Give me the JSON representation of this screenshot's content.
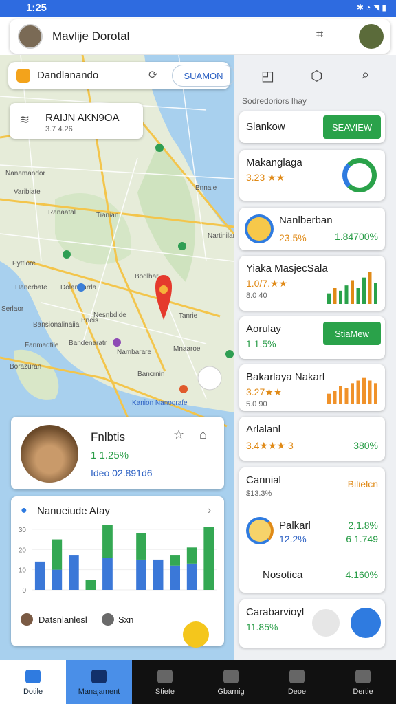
{
  "status_bar": {
    "time": "1:25"
  },
  "header": {
    "title": "Mavlije Dorotal"
  },
  "search": {
    "text": "Dandlanando",
    "button": "SUAMON"
  },
  "info_card": {
    "title": "RAIJN AKN9OA",
    "subtitle": "3.7 4.26"
  },
  "map": {
    "labels": [
      "Nanamandor",
      "Bnnaie",
      "Ranaatal",
      "Varibiate",
      "Tianian",
      "Nartinilant",
      "Bodlhar",
      "Pyttiore",
      "Hanerbate",
      "Dolamrarrla",
      "Serlaor",
      "Bneis",
      "Fanmadtile",
      "Tanrie",
      "Nesnbdide",
      "Mnaaroe",
      "Borazuran",
      "Bandenaratr",
      "Nambarare",
      "Bansionalinaiia",
      "Bancrnin",
      "Kanion Nanografe"
    ]
  },
  "profile_card": {
    "name": "Fnlbtis",
    "percent": "1 1.25%",
    "detail": "Ideo 02.891d6"
  },
  "activity_chart": {
    "type": "bar",
    "title": "Nanueiude Atay",
    "series": [
      {
        "color": "#3b78d8",
        "values": [
          14,
          10,
          17,
          0,
          16,
          0,
          15,
          15,
          12,
          13,
          0
        ]
      },
      {
        "color": "#34a853",
        "values": [
          0,
          15,
          0,
          5,
          16,
          0,
          13,
          0,
          5,
          8,
          31
        ]
      }
    ],
    "ylim": [
      0,
      32
    ],
    "yticks": [
      0,
      10,
      20,
      30
    ]
  },
  "footer_users": [
    "Datsnlanlesl",
    "Sxn"
  ],
  "panel": {
    "caption": "Sodredoriors lhay",
    "cards": [
      {
        "title": "Slankow",
        "button": "SEAVIEW"
      },
      {
        "title": "Makanglaga",
        "rating": "3.23 ★★"
      },
      {
        "title": "Nanlberban",
        "left": "23.5%",
        "right": "1.84700%"
      },
      {
        "title": "Yiaka MasjecSala",
        "rating": "1.0/7.★★",
        "sub": "8.0 40",
        "bars": [
          4,
          6,
          5,
          7,
          9,
          6,
          10,
          12,
          8
        ]
      },
      {
        "title": "Aorulay",
        "sub": "1 1.5%",
        "button": "StiaMew"
      },
      {
        "title": "Bakarlaya Nakarl",
        "rating": "3.27★★",
        "sub": "5.0 90",
        "bars": [
          4,
          5,
          7,
          6,
          8,
          9,
          10,
          9,
          8
        ]
      },
      {
        "title": "Arlalanl",
        "rating": "3.4★★★ 3",
        "right": "380%"
      },
      {
        "title": "Cannial",
        "sub": "$13.3%",
        "right": "Bilielcn",
        "item": "Palkarl",
        "item_sub": "12.2%",
        "item_right1": "2,1.8%",
        "item_right2": "6 1.749",
        "foot": "Nosotica",
        "foot_right": "4.160%"
      },
      {
        "title": "Carabarvioyl",
        "sub": "11.85%"
      }
    ]
  },
  "nav": [
    "Dotile",
    "Manajament",
    "Stiete",
    "Gbarnig",
    "Deoe",
    "Dertie"
  ]
}
